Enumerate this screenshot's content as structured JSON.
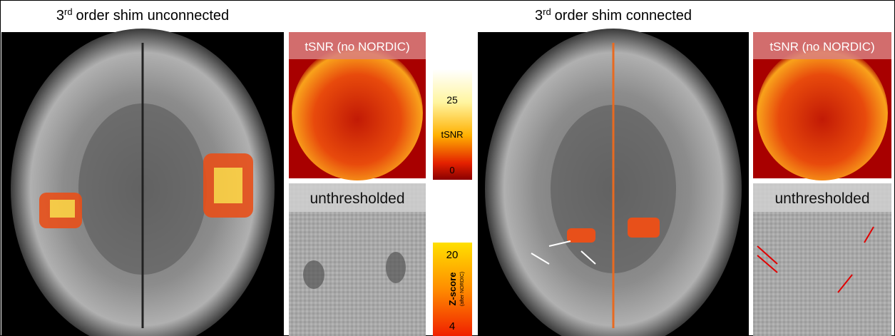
{
  "panels": [
    {
      "title": {
        "number": "3",
        "superscript": "rd",
        "text": "order shim unconnected"
      },
      "tsnr_label": "tSNR (no NORDIC)",
      "unthresholded_label": "unthresholded"
    },
    {
      "title": {
        "number": "3",
        "superscript": "rd",
        "text": "order shim connected"
      },
      "tsnr_label": "tSNR (no NORDIC)",
      "unthresholded_label": "unthresholded"
    }
  ],
  "colorbars": {
    "tsnr": {
      "max": "25",
      "label": "tSNR",
      "min": "0"
    },
    "zscore": {
      "max": "20",
      "label": "Z-score",
      "sublabel": "(after NORDIC)",
      "min": "4"
    }
  }
}
